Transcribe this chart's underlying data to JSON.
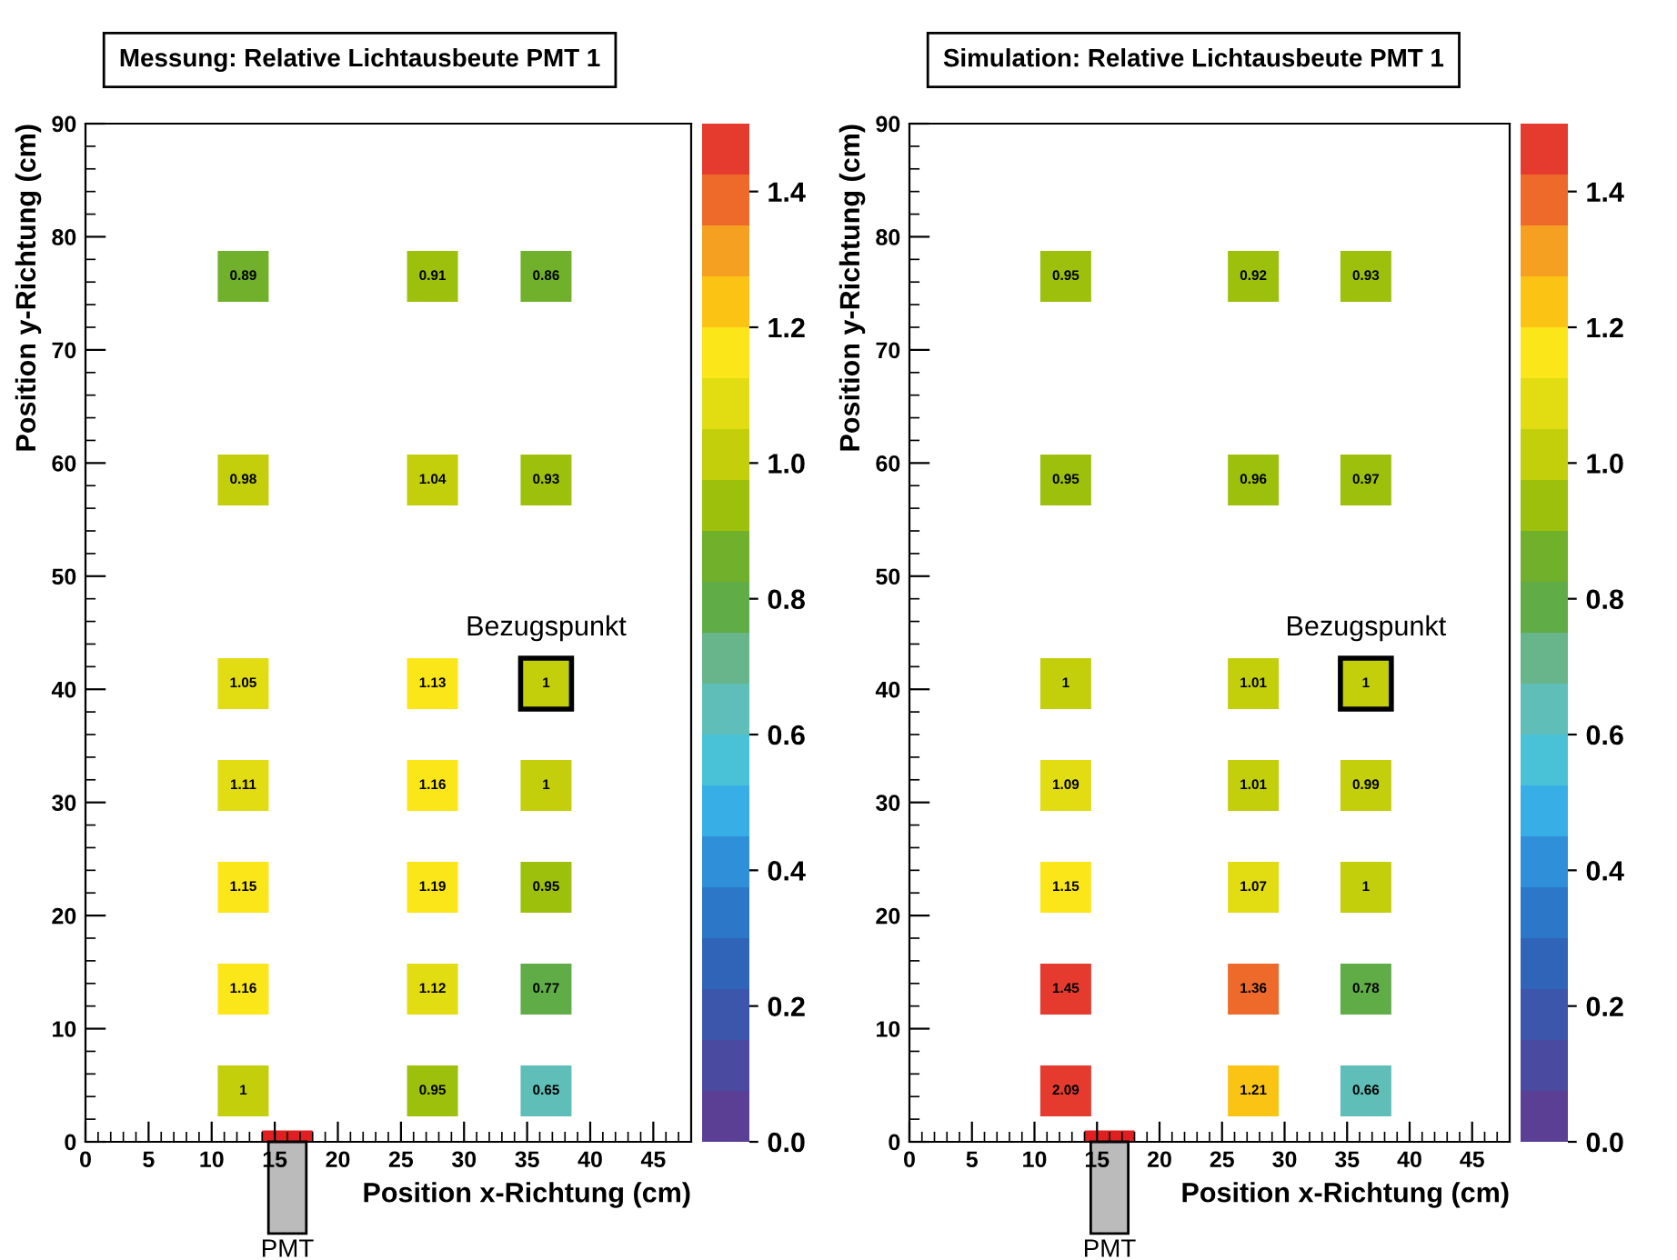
{
  "chart_data": [
    {
      "type": "scatter",
      "title": "Messung: Relative Lichtausbeute PMT 1",
      "xlabel": "Position x-Richtung (cm)",
      "ylabel": "Position y-Richtung (cm)",
      "marker": "square",
      "xlim": [
        0,
        48
      ],
      "xticks": [
        0,
        5,
        10,
        15,
        20,
        25,
        30,
        35,
        40,
        45
      ],
      "ylim": [
        0,
        90
      ],
      "yticks": [
        0,
        10,
        20,
        30,
        40,
        50,
        60,
        70,
        80,
        90
      ],
      "clim": [
        0,
        1.5
      ],
      "cticks": [
        {
          "value": 0,
          "label": "0.0"
        },
        {
          "value": 0.2,
          "label": "0.2"
        },
        {
          "value": 0.4,
          "label": "0.4"
        },
        {
          "value": 0.6,
          "label": "0.6"
        },
        {
          "value": 0.8,
          "label": "0.8"
        },
        {
          "value": 1.0,
          "label": "1.0"
        },
        {
          "value": 1.2,
          "label": "1.2"
        },
        {
          "value": 1.4,
          "label": "1.4"
        }
      ],
      "series": [
        {
          "x": [
            12.5,
            12.5,
            12.5,
            12.5,
            12.5,
            12.5,
            12.5,
            27.5,
            27.5,
            27.5,
            27.5,
            27.5,
            27.5,
            27.5,
            36.5,
            36.5,
            36.5,
            36.5,
            36.5,
            36.5,
            36.5
          ],
          "values": [
            76.5,
            58.5,
            40.5,
            31.5,
            22.5,
            13.5,
            4.5,
            76.5,
            58.5,
            40.5,
            31.5,
            22.5,
            13.5,
            4.5,
            76.5,
            58.5,
            40.5,
            31.5,
            22.5,
            13.5,
            4.5
          ],
          "cvalues": [
            0.89,
            0.98,
            1.05,
            1.11,
            1.15,
            1.16,
            1,
            0.91,
            1.04,
            1.13,
            1.16,
            1.19,
            1.12,
            0.95,
            0.86,
            0.93,
            1,
            1,
            0.95,
            0.77,
            0.65
          ]
        }
      ],
      "annotations": [
        {
          "text": "Bezugspunkt",
          "x": 36.5,
          "y": 40.5
        },
        "PMT",
        {
          "text": "0.89",
          "x": 12.5,
          "y": 76.5
        },
        {
          "text": "0.98",
          "x": 12.5,
          "y": 58.5
        },
        {
          "text": "1.05",
          "x": 12.5,
          "y": 40.5
        },
        {
          "text": "1.11",
          "x": 12.5,
          "y": 31.5
        },
        {
          "text": "1.15",
          "x": 12.5,
          "y": 22.5
        },
        {
          "text": "1.16",
          "x": 12.5,
          "y": 13.5
        },
        {
          "text": "1",
          "x": 12.5,
          "y": 4.5
        },
        {
          "text": "0.91",
          "x": 27.5,
          "y": 76.5
        },
        {
          "text": "1.04",
          "x": 27.5,
          "y": 58.5
        },
        {
          "text": "1.13",
          "x": 27.5,
          "y": 40.5
        },
        {
          "text": "1.16",
          "x": 27.5,
          "y": 31.5
        },
        {
          "text": "1.19",
          "x": 27.5,
          "y": 22.5
        },
        {
          "text": "1.12",
          "x": 27.5,
          "y": 13.5
        },
        {
          "text": "0.95",
          "x": 27.5,
          "y": 4.5
        },
        {
          "text": "0.86",
          "x": 36.5,
          "y": 76.5
        },
        {
          "text": "0.93",
          "x": 36.5,
          "y": 58.5
        },
        {
          "text": "1",
          "x": 36.5,
          "y": 40.5
        },
        {
          "text": "1",
          "x": 36.5,
          "y": 31.5
        },
        {
          "text": "0.95",
          "x": 36.5,
          "y": 22.5
        },
        {
          "text": "0.77",
          "x": 36.5,
          "y": 13.5
        },
        {
          "text": "0.65",
          "x": 36.5,
          "y": 4.5
        }
      ]
    },
    {
      "type": "scatter",
      "title": "Simulation: Relative Lichtausbeute PMT 1",
      "xlabel": "Position x-Richtung (cm)",
      "ylabel": "Position y-Richtung (cm)",
      "marker": "square",
      "xlim": [
        0,
        48
      ],
      "xticks": [
        0,
        5,
        10,
        15,
        20,
        25,
        30,
        35,
        40,
        45
      ],
      "ylim": [
        0,
        90
      ],
      "yticks": [
        0,
        10,
        20,
        30,
        40,
        50,
        60,
        70,
        80,
        90
      ],
      "clim": [
        0,
        1.5
      ],
      "cticks": [
        {
          "value": 0,
          "label": "0.0"
        },
        {
          "value": 0.2,
          "label": "0.2"
        },
        {
          "value": 0.4,
          "label": "0.4"
        },
        {
          "value": 0.6,
          "label": "0.6"
        },
        {
          "value": 0.8,
          "label": "0.8"
        },
        {
          "value": 1.0,
          "label": "1.0"
        },
        {
          "value": 1.2,
          "label": "1.2"
        },
        {
          "value": 1.4,
          "label": "1.4"
        }
      ],
      "series": [
        {
          "x": [
            12.5,
            12.5,
            12.5,
            12.5,
            12.5,
            12.5,
            12.5,
            27.5,
            27.5,
            27.5,
            27.5,
            27.5,
            27.5,
            27.5,
            36.5,
            36.5,
            36.5,
            36.5,
            36.5,
            36.5,
            36.5
          ],
          "values": [
            76.5,
            58.5,
            40.5,
            31.5,
            22.5,
            13.5,
            4.5,
            76.5,
            58.5,
            40.5,
            31.5,
            22.5,
            13.5,
            4.5,
            76.5,
            58.5,
            40.5,
            31.5,
            22.5,
            13.5,
            4.5
          ],
          "cvalues": [
            0.95,
            0.95,
            1,
            1.09,
            1.15,
            1.45,
            2.09,
            0.92,
            0.96,
            1.01,
            1.01,
            1.07,
            1.36,
            1.21,
            0.93,
            0.97,
            1,
            0.99,
            1,
            0.78,
            0.66
          ]
        }
      ],
      "annotations": [
        {
          "text": "Bezugspunkt",
          "x": 36.5,
          "y": 40.5
        },
        "PMT",
        {
          "text": "0.95",
          "x": 12.5,
          "y": 76.5
        },
        {
          "text": "0.95",
          "x": 12.5,
          "y": 58.5
        },
        {
          "text": "1",
          "x": 12.5,
          "y": 40.5
        },
        {
          "text": "1.09",
          "x": 12.5,
          "y": 31.5
        },
        {
          "text": "1.15",
          "x": 12.5,
          "y": 22.5
        },
        {
          "text": "1.45",
          "x": 12.5,
          "y": 13.5
        },
        {
          "text": "2.09",
          "x": 12.5,
          "y": 4.5
        },
        {
          "text": "0.92",
          "x": 27.5,
          "y": 76.5
        },
        {
          "text": "0.96",
          "x": 27.5,
          "y": 58.5
        },
        {
          "text": "1.01",
          "x": 27.5,
          "y": 40.5
        },
        {
          "text": "1.01",
          "x": 27.5,
          "y": 31.5
        },
        {
          "text": "1.07",
          "x": 27.5,
          "y": 22.5
        },
        {
          "text": "1.36",
          "x": 27.5,
          "y": 13.5
        },
        {
          "text": "1.21",
          "x": 27.5,
          "y": 4.5
        },
        {
          "text": "0.93",
          "x": 36.5,
          "y": 76.5
        },
        {
          "text": "0.97",
          "x": 36.5,
          "y": 58.5
        },
        {
          "text": "1",
          "x": 36.5,
          "y": 40.5
        },
        {
          "text": "0.99",
          "x": 36.5,
          "y": 31.5
        },
        {
          "text": "1",
          "x": 36.5,
          "y": 22.5
        },
        {
          "text": "0.78",
          "x": 36.5,
          "y": 13.5
        },
        {
          "text": "0.66",
          "x": 36.5,
          "y": 4.5
        }
      ]
    }
  ]
}
